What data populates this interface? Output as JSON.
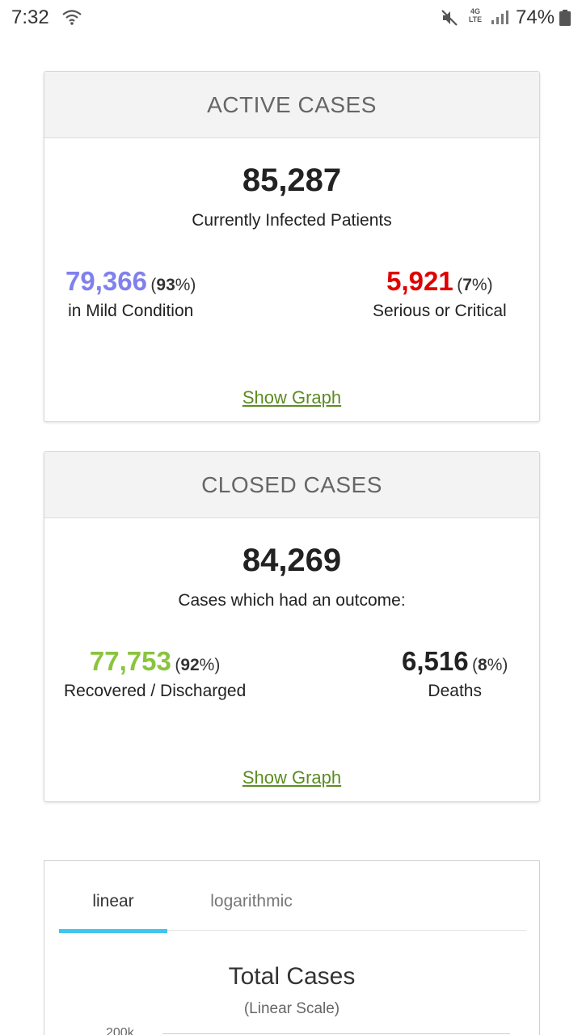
{
  "status_bar": {
    "time": "7:32",
    "network": "4G LTE",
    "battery": "74%",
    "icons": [
      "wifi-icon",
      "mute-icon",
      "signal-icon",
      "battery-icon"
    ]
  },
  "active_cases": {
    "title": "ACTIVE CASES",
    "total": "85,287",
    "total_label": "Currently Infected Patients",
    "mild": {
      "count": "79,366",
      "pct_open": "(",
      "pct": "93",
      "pct_close": "%)",
      "label": "in Mild Condition",
      "color": "#8080ee"
    },
    "serious": {
      "count": "5,921",
      "pct_open": "(",
      "pct": "7",
      "pct_close": "%)",
      "label": "Serious or Critical",
      "color": "#e00000"
    },
    "show_graph": "Show Graph"
  },
  "closed_cases": {
    "title": "CLOSED CASES",
    "total": "84,269",
    "total_label": "Cases which had an outcome:",
    "recovered": {
      "count": "77,753",
      "pct_open": "(",
      "pct": "92",
      "pct_close": "%)",
      "label": "Recovered / Discharged",
      "color": "#8ac43f"
    },
    "deaths": {
      "count": "6,516",
      "pct_open": "(",
      "pct": "8",
      "pct_close": "%)",
      "label": "Deaths",
      "color": "#222222"
    },
    "show_graph": "Show Graph"
  },
  "chart": {
    "tabs": [
      {
        "label": "linear",
        "active": true
      },
      {
        "label": "logarithmic",
        "active": false
      }
    ],
    "title": "Total Cases",
    "subtitle": "(Linear Scale)",
    "y_tick_top": "200k"
  },
  "colors": {
    "link": "#5c8c22",
    "tab_accent": "#3fc6ef"
  }
}
